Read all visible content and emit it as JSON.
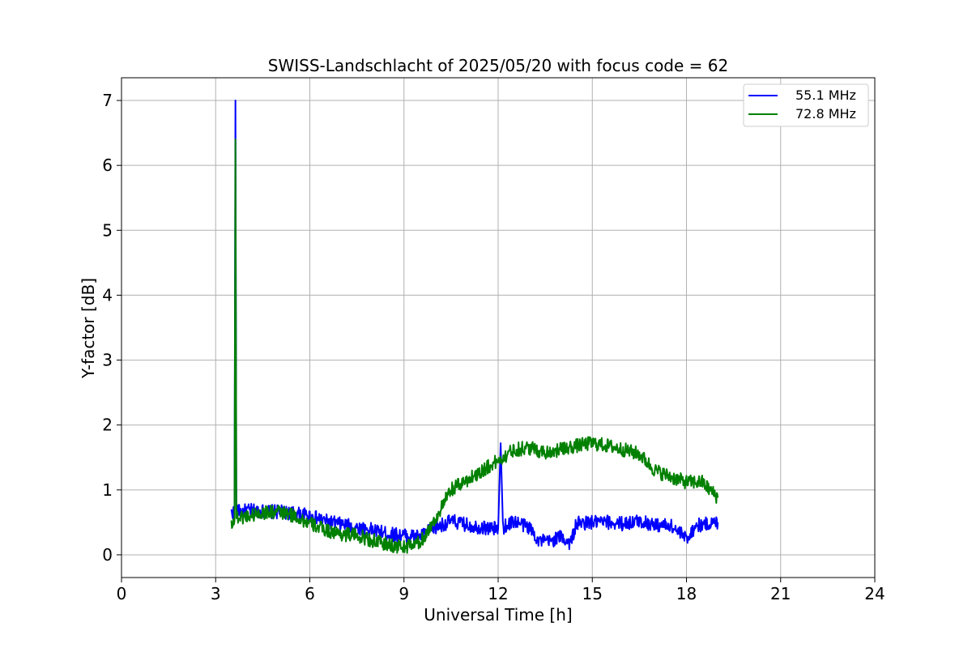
{
  "chart_data": {
    "type": "line",
    "title": "SWISS-Landschlacht of 2025/05/20 with focus code = 62",
    "xlabel": "Universal Time [h]",
    "ylabel": "Y-factor [dB]",
    "xlim": [
      0,
      24
    ],
    "ylim": [
      -0.35,
      7.35
    ],
    "xticks": [
      0,
      3,
      6,
      9,
      12,
      15,
      18,
      21,
      24
    ],
    "yticks": [
      0,
      1,
      2,
      3,
      4,
      5,
      6,
      7
    ],
    "grid": true,
    "legend_position": "top-right",
    "series": [
      {
        "name": "55.1 MHz",
        "color": "#0000ff",
        "points": [
          [
            3.5,
            0.65
          ],
          [
            3.6,
            0.66
          ],
          [
            3.63,
            7.0
          ],
          [
            3.66,
            0.68
          ],
          [
            3.8,
            0.66
          ],
          [
            4.0,
            0.68
          ],
          [
            4.5,
            0.67
          ],
          [
            5.0,
            0.66
          ],
          [
            5.5,
            0.64
          ],
          [
            6.0,
            0.6
          ],
          [
            6.5,
            0.52
          ],
          [
            7.0,
            0.47
          ],
          [
            7.5,
            0.42
          ],
          [
            8.0,
            0.38
          ],
          [
            8.5,
            0.32
          ],
          [
            9.0,
            0.3
          ],
          [
            9.5,
            0.28
          ],
          [
            10.0,
            0.42
          ],
          [
            10.5,
            0.52
          ],
          [
            11.0,
            0.46
          ],
          [
            11.5,
            0.42
          ],
          [
            12.0,
            0.4
          ],
          [
            12.08,
            1.72
          ],
          [
            12.15,
            0.42
          ],
          [
            12.5,
            0.52
          ],
          [
            13.0,
            0.42
          ],
          [
            13.3,
            0.22
          ],
          [
            13.6,
            0.2
          ],
          [
            14.0,
            0.28
          ],
          [
            14.3,
            0.18
          ],
          [
            14.5,
            0.48
          ],
          [
            15.0,
            0.5
          ],
          [
            15.5,
            0.5
          ],
          [
            16.0,
            0.48
          ],
          [
            16.5,
            0.52
          ],
          [
            17.0,
            0.46
          ],
          [
            17.5,
            0.45
          ],
          [
            18.0,
            0.25
          ],
          [
            18.3,
            0.45
          ],
          [
            19.0,
            0.5
          ]
        ]
      },
      {
        "name": "72.8 MHz",
        "color": "#008000",
        "points": [
          [
            3.5,
            0.5
          ],
          [
            3.6,
            0.52
          ],
          [
            3.63,
            6.4
          ],
          [
            3.66,
            0.58
          ],
          [
            3.8,
            0.58
          ],
          [
            4.0,
            0.6
          ],
          [
            4.5,
            0.65
          ],
          [
            5.0,
            0.66
          ],
          [
            5.5,
            0.6
          ],
          [
            6.0,
            0.48
          ],
          [
            6.5,
            0.38
          ],
          [
            7.0,
            0.32
          ],
          [
            7.5,
            0.3
          ],
          [
            8.0,
            0.22
          ],
          [
            8.5,
            0.15
          ],
          [
            9.0,
            0.12
          ],
          [
            9.5,
            0.18
          ],
          [
            10.0,
            0.55
          ],
          [
            10.5,
            1.0
          ],
          [
            11.0,
            1.15
          ],
          [
            11.5,
            1.3
          ],
          [
            12.0,
            1.45
          ],
          [
            12.5,
            1.62
          ],
          [
            13.0,
            1.65
          ],
          [
            13.5,
            1.58
          ],
          [
            14.0,
            1.62
          ],
          [
            14.5,
            1.68
          ],
          [
            15.0,
            1.72
          ],
          [
            15.5,
            1.68
          ],
          [
            16.0,
            1.62
          ],
          [
            16.5,
            1.55
          ],
          [
            17.0,
            1.3
          ],
          [
            17.5,
            1.2
          ],
          [
            18.0,
            1.12
          ],
          [
            18.5,
            1.12
          ],
          [
            19.0,
            0.88
          ]
        ]
      }
    ]
  }
}
